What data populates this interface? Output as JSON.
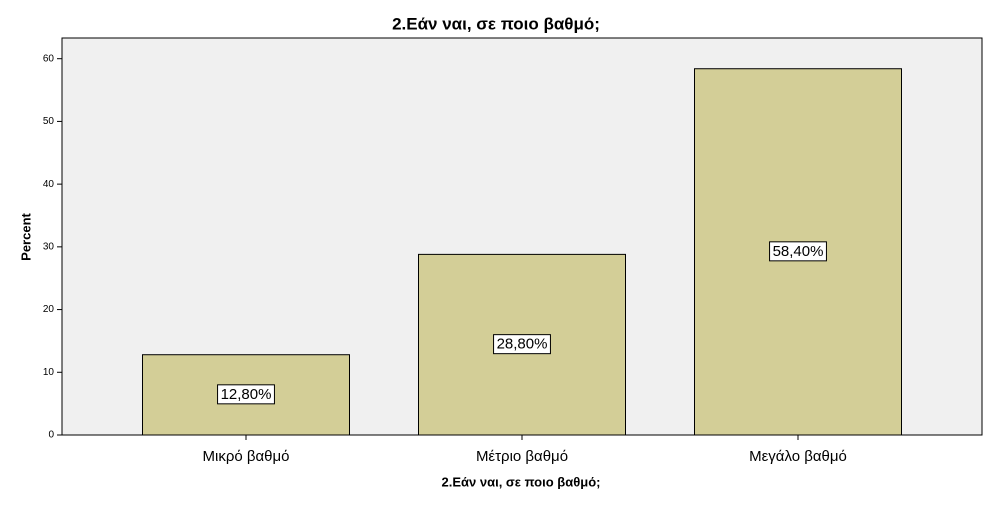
{
  "chart_data": {
    "type": "bar",
    "title": "2.Εάν ναι, σε ποιο βαθμό;",
    "x_label": "2.Εάν ναι, σε ποιο βαθμό;",
    "y_label": "Percent",
    "categories": [
      "Μικρό βαθμό",
      "Μέτριο βαθμό",
      "Μεγάλο βαθμό"
    ],
    "values": [
      12.8,
      28.8,
      58.4
    ],
    "value_labels": [
      "12,80%",
      "28,80%",
      "58,40%"
    ],
    "color": "#d3ce97",
    "ylim": [
      0,
      63.3
    ],
    "yticks": [
      0,
      10,
      20,
      30,
      40,
      50,
      60
    ],
    "grid": false
  }
}
